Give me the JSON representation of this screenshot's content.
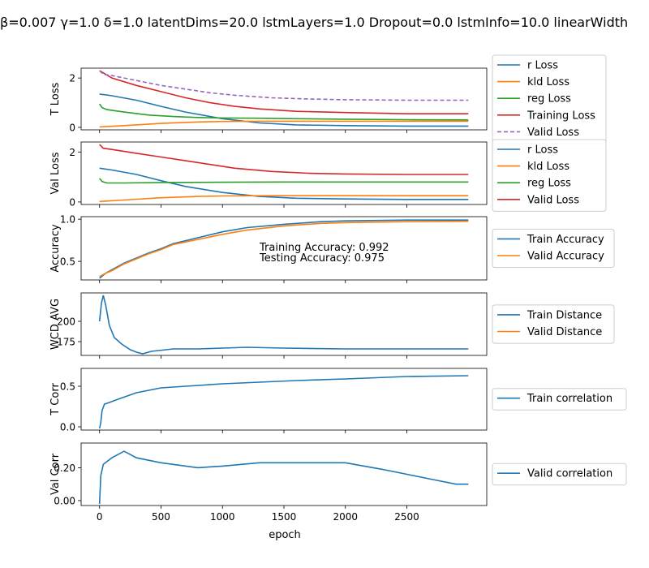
{
  "figure": {
    "suptitle": "β=0.007 γ=1.0 δ=1.0 latentDims=20.0 lstmLayers=1.0 Dropout=0.0 lstmInfo=10.0 linearWidth",
    "xlabel": "epoch",
    "colors": {
      "blue": "#1f77b4",
      "orange": "#ff7f0e",
      "green": "#2ca02c",
      "red": "#d62728",
      "purple": "#9467bd"
    }
  },
  "chart_data": [
    {
      "type": "line",
      "ylabel": "T Loss",
      "xlim": [
        -150,
        3150
      ],
      "ylim": [
        -0.1,
        2.4
      ],
      "yticks": [
        0,
        2
      ],
      "ytick_labels": [
        "0",
        "2"
      ],
      "show_xticklabels": false,
      "legend": "outside-right",
      "series": [
        {
          "name": "r Loss",
          "color": "#1f77b4",
          "dashed": false,
          "x": [
            0,
            100,
            300,
            500,
            700,
            1000,
            1300,
            1600,
            2000,
            2500,
            3000
          ],
          "y": [
            1.35,
            1.28,
            1.1,
            0.85,
            0.62,
            0.35,
            0.18,
            0.1,
            0.07,
            0.05,
            0.05
          ]
        },
        {
          "name": "kld Loss",
          "color": "#ff7f0e",
          "dashed": false,
          "x": [
            0,
            200,
            500,
            800,
            1000,
            1300,
            1600,
            2000,
            2500,
            3000
          ],
          "y": [
            0.02,
            0.07,
            0.16,
            0.22,
            0.24,
            0.25,
            0.25,
            0.25,
            0.25,
            0.25
          ]
        },
        {
          "name": "reg Loss",
          "color": "#2ca02c",
          "dashed": false,
          "x": [
            0,
            20,
            60,
            200,
            400,
            600,
            800,
            1000,
            1300,
            1600,
            2000,
            2500,
            3000
          ],
          "y": [
            0.95,
            0.8,
            0.72,
            0.62,
            0.5,
            0.44,
            0.4,
            0.38,
            0.37,
            0.35,
            0.33,
            0.31,
            0.3
          ]
        },
        {
          "name": "Training Loss",
          "color": "#d62728",
          "dashed": false,
          "x": [
            0,
            100,
            300,
            500,
            700,
            900,
            1100,
            1300,
            1600,
            2000,
            2500,
            3000
          ],
          "y": [
            2.3,
            2.0,
            1.7,
            1.45,
            1.2,
            1.0,
            0.85,
            0.75,
            0.65,
            0.6,
            0.55,
            0.55
          ]
        },
        {
          "name": "Valid Loss",
          "color": "#9467bd",
          "dashed": true,
          "x": [
            0,
            30,
            100,
            300,
            500,
            700,
            900,
            1100,
            1400,
            1700,
            2000,
            2500,
            3000
          ],
          "y": [
            2.3,
            2.15,
            2.1,
            1.9,
            1.7,
            1.55,
            1.4,
            1.3,
            1.2,
            1.15,
            1.12,
            1.1,
            1.1
          ]
        }
      ]
    },
    {
      "type": "line",
      "ylabel": "Val Loss",
      "xlim": [
        -150,
        3150
      ],
      "ylim": [
        -0.1,
        2.4
      ],
      "yticks": [
        0,
        2
      ],
      "ytick_labels": [
        "0",
        "2"
      ],
      "show_xticklabels": false,
      "legend": "outside-right",
      "series": [
        {
          "name": "r Loss",
          "color": "#1f77b4",
          "dashed": false,
          "x": [
            0,
            100,
            300,
            500,
            700,
            1000,
            1300,
            1600,
            2000,
            2500,
            3000
          ],
          "y": [
            1.35,
            1.28,
            1.1,
            0.85,
            0.62,
            0.38,
            0.22,
            0.15,
            0.12,
            0.1,
            0.1
          ]
        },
        {
          "name": "kld Loss",
          "color": "#ff7f0e",
          "dashed": false,
          "x": [
            0,
            200,
            500,
            800,
            1000,
            1300,
            1600,
            2000,
            2500,
            3000
          ],
          "y": [
            0.02,
            0.08,
            0.17,
            0.22,
            0.24,
            0.25,
            0.25,
            0.25,
            0.25,
            0.25
          ]
        },
        {
          "name": "reg Loss",
          "color": "#2ca02c",
          "dashed": false,
          "x": [
            0,
            20,
            60,
            200,
            500,
            1000,
            1500,
            2000,
            2500,
            3000
          ],
          "y": [
            0.95,
            0.82,
            0.76,
            0.76,
            0.78,
            0.79,
            0.8,
            0.8,
            0.8,
            0.8
          ]
        },
        {
          "name": "Valid Loss",
          "color": "#d62728",
          "dashed": false,
          "x": [
            0,
            30,
            100,
            300,
            500,
            700,
            900,
            1100,
            1400,
            1700,
            2000,
            2500,
            3000
          ],
          "y": [
            2.3,
            2.15,
            2.1,
            1.95,
            1.8,
            1.65,
            1.5,
            1.35,
            1.22,
            1.15,
            1.12,
            1.1,
            1.1
          ]
        }
      ]
    },
    {
      "type": "line",
      "ylabel": "Accuracy",
      "xlim": [
        -150,
        3150
      ],
      "ylim": [
        0.28,
        1.03
      ],
      "yticks": [
        0.5,
        1.0
      ],
      "ytick_labels": [
        "0.5",
        "1.0"
      ],
      "show_xticklabels": false,
      "legend": "outside-right",
      "annotations": [
        "Training Accuracy: 0.992",
        "Testing Accuracy: 0.975"
      ],
      "series": [
        {
          "name": "Train Accuracy",
          "color": "#1f77b4",
          "dashed": false,
          "x": [
            0,
            50,
            100,
            200,
            300,
            400,
            500,
            600,
            800,
            1000,
            1200,
            1500,
            1800,
            2000,
            2500,
            3000
          ],
          "y": [
            0.3,
            0.36,
            0.4,
            0.48,
            0.54,
            0.6,
            0.65,
            0.71,
            0.78,
            0.85,
            0.9,
            0.94,
            0.97,
            0.98,
            0.99,
            0.99
          ]
        },
        {
          "name": "Valid Accuracy",
          "color": "#ff7f0e",
          "dashed": false,
          "x": [
            0,
            50,
            100,
            200,
            300,
            400,
            500,
            600,
            800,
            1000,
            1200,
            1500,
            1800,
            2000,
            2500,
            3000
          ],
          "y": [
            0.32,
            0.36,
            0.39,
            0.47,
            0.53,
            0.59,
            0.64,
            0.7,
            0.76,
            0.82,
            0.87,
            0.92,
            0.95,
            0.96,
            0.97,
            0.975
          ]
        }
      ]
    },
    {
      "type": "line",
      "ylabel": "WCD AVG",
      "xlim": [
        -150,
        3150
      ],
      "ylim": [
        158,
        235
      ],
      "yticks": [
        175,
        200
      ],
      "ytick_labels": [
        "175",
        "200"
      ],
      "show_xticklabels": false,
      "legend": "outside-right",
      "series": [
        {
          "name": "Train Distance",
          "color": "#1f77b4",
          "dashed": false,
          "x": [
            0,
            15,
            30,
            50,
            80,
            120,
            180,
            250,
            300,
            350,
            420,
            600,
            800,
            1000,
            1200,
            1500,
            2000,
            2500,
            3000
          ],
          "y": [
            200,
            222,
            232,
            220,
            195,
            180,
            172,
            165,
            162,
            160,
            163,
            166,
            166,
            167,
            168,
            167,
            166,
            166,
            166
          ]
        },
        {
          "name": "Valid Distance",
          "color": "#ff7f0e",
          "dashed": false,
          "x": [],
          "y": []
        }
      ]
    },
    {
      "type": "line",
      "ylabel": "T Corr",
      "xlim": [
        -150,
        3150
      ],
      "ylim": [
        -0.04,
        0.72
      ],
      "yticks": [
        0.0,
        0.5
      ],
      "ytick_labels": [
        "0.0",
        "0.5"
      ],
      "show_xticklabels": false,
      "legend": "outside-right",
      "series": [
        {
          "name": "Train correlation",
          "color": "#1f77b4",
          "dashed": false,
          "x": [
            0,
            10,
            20,
            40,
            80,
            150,
            300,
            500,
            700,
            1000,
            1300,
            1600,
            2000,
            2500,
            3000
          ],
          "y": [
            -0.02,
            0.05,
            0.2,
            0.28,
            0.3,
            0.34,
            0.42,
            0.48,
            0.5,
            0.53,
            0.55,
            0.57,
            0.59,
            0.62,
            0.63
          ]
        }
      ]
    },
    {
      "type": "line",
      "ylabel": "Val Corr",
      "xlim": [
        -150,
        3150
      ],
      "ylim": [
        -0.03,
        0.35
      ],
      "yticks": [
        0.0,
        0.2
      ],
      "ytick_labels": [
        "0.00",
        "0.20"
      ],
      "show_xticklabels": true,
      "xticks": [
        0,
        500,
        1000,
        1500,
        2000,
        2500
      ],
      "xtick_labels": [
        "0",
        "500",
        "1000",
        "1500",
        "2000",
        "2500"
      ],
      "legend": "outside-right",
      "series": [
        {
          "name": "Valid correlation",
          "color": "#1f77b4",
          "dashed": false,
          "x": [
            0,
            10,
            30,
            100,
            200,
            300,
            500,
            800,
            1000,
            1300,
            1600,
            2000,
            2300,
            2500,
            2700,
            2900,
            3000
          ],
          "y": [
            -0.02,
            0.15,
            0.22,
            0.26,
            0.3,
            0.26,
            0.23,
            0.2,
            0.21,
            0.23,
            0.23,
            0.23,
            0.19,
            0.16,
            0.13,
            0.1,
            0.1
          ]
        }
      ]
    }
  ]
}
